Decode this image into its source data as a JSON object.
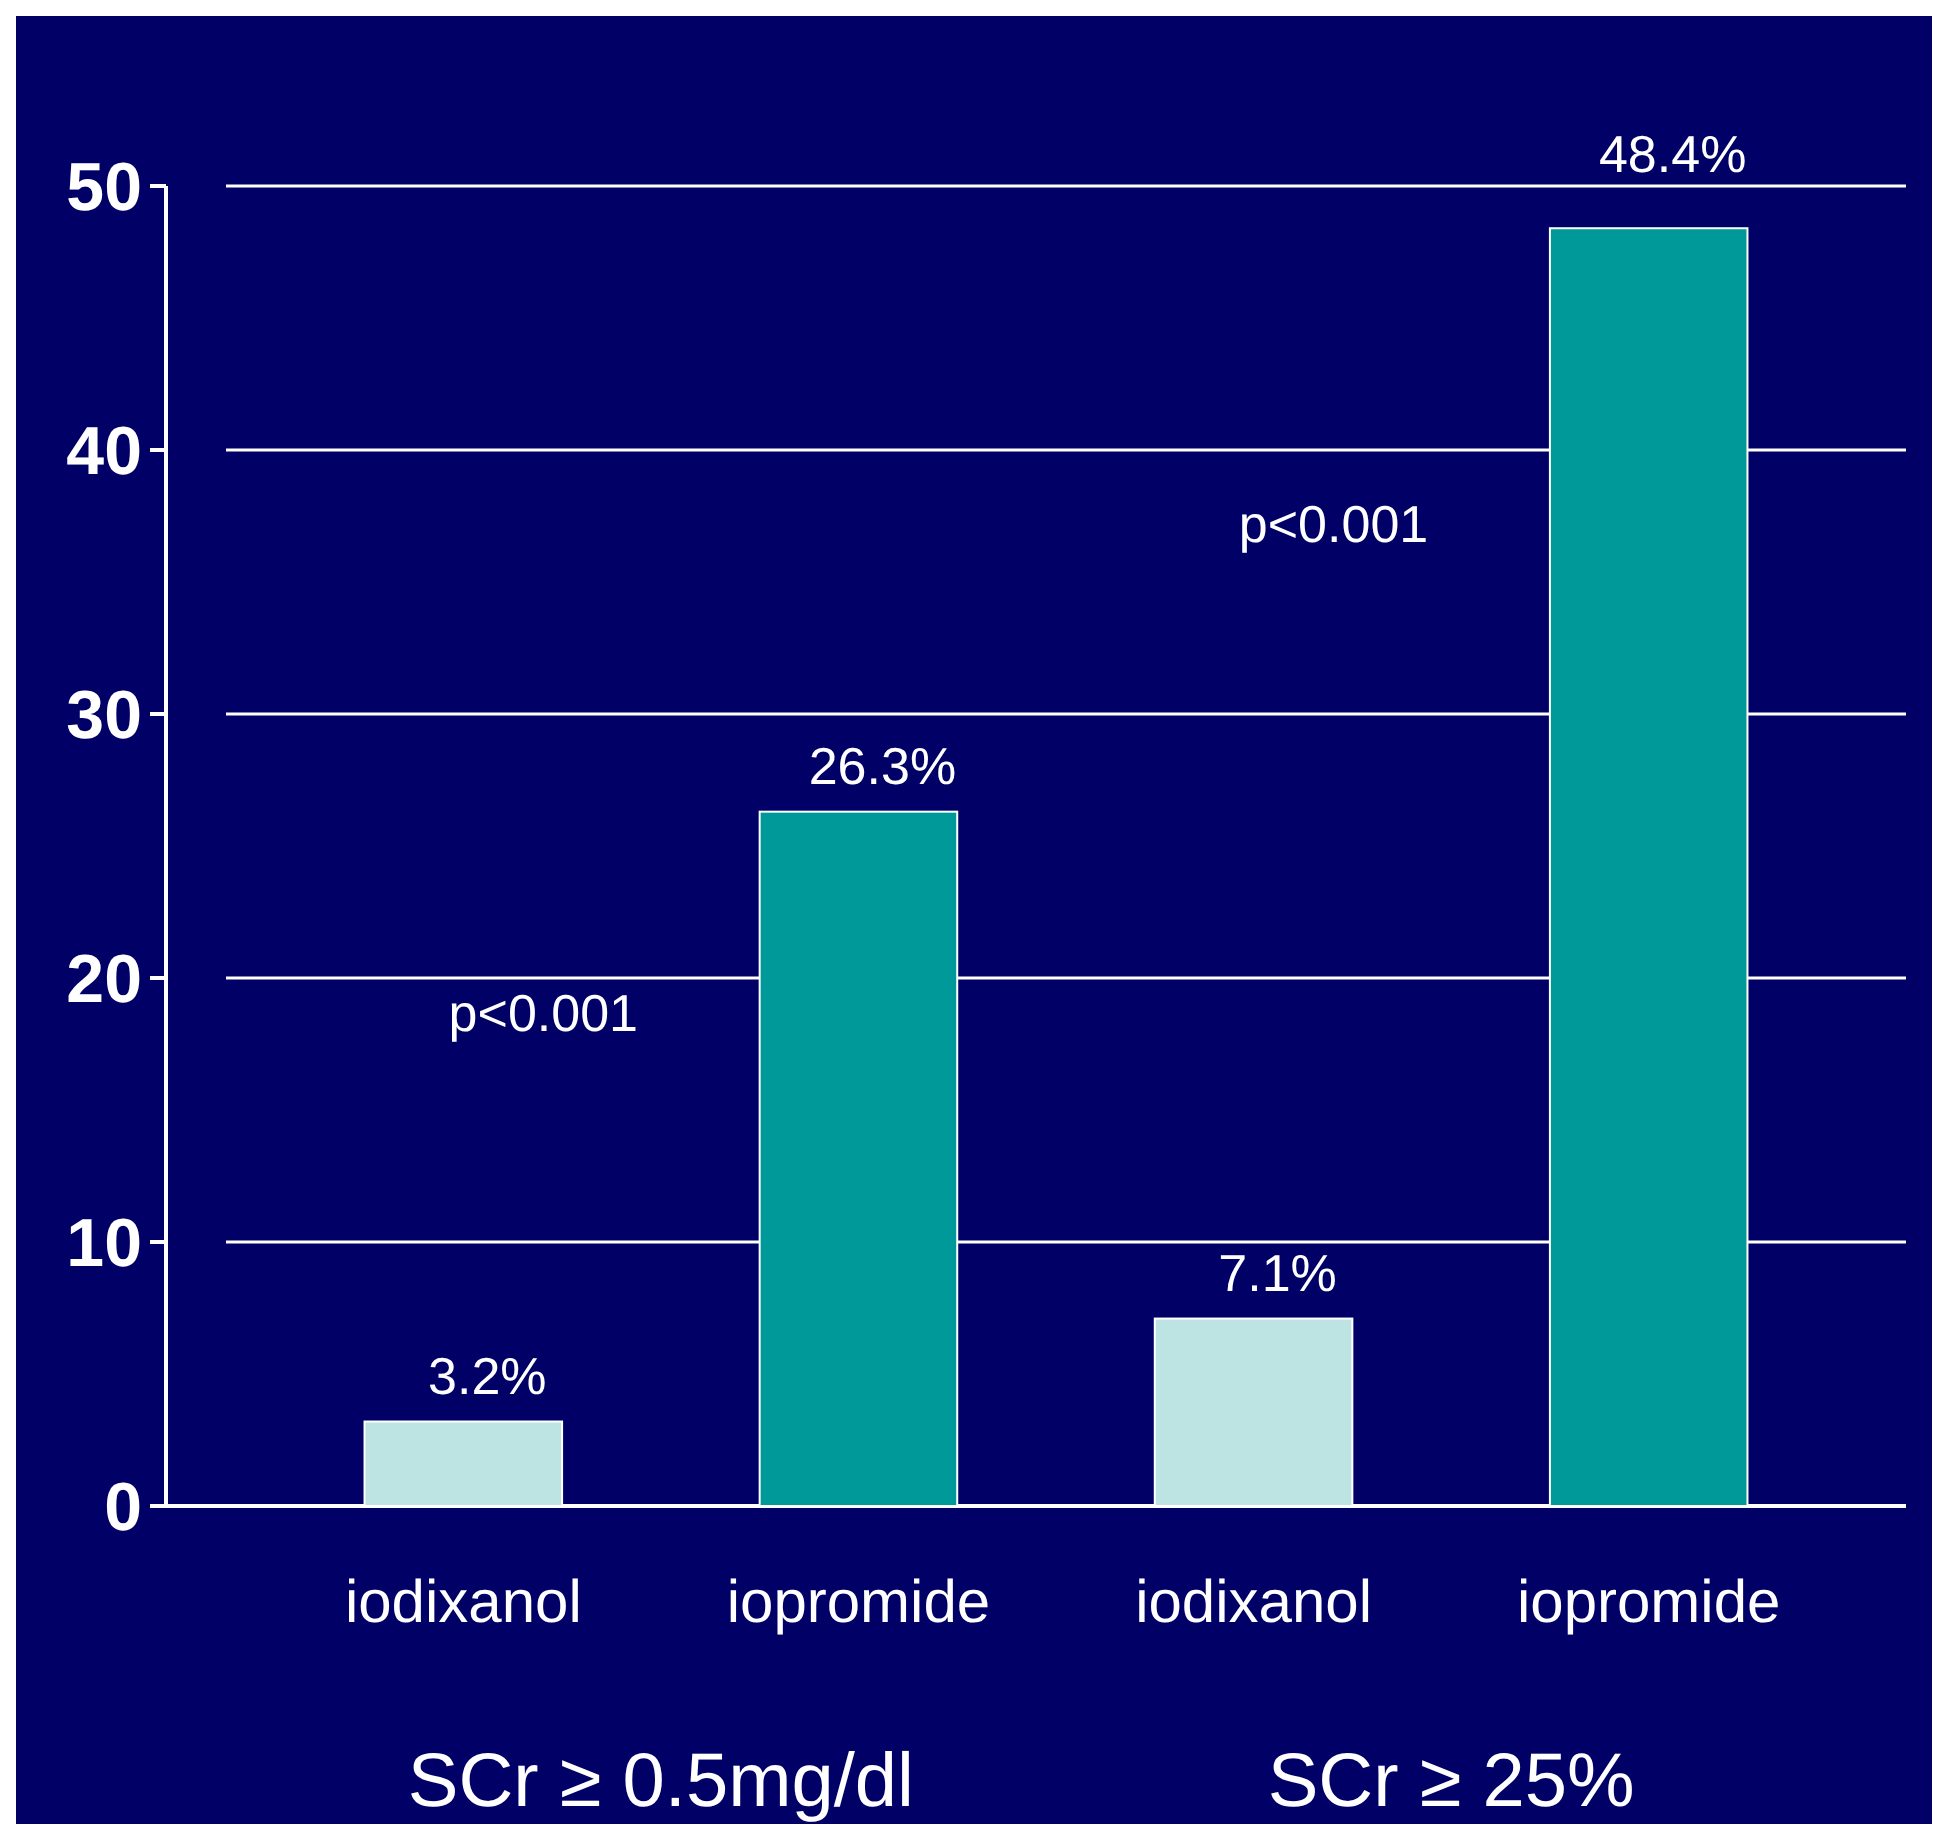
{
  "chart_data": {
    "type": "bar",
    "categories": [
      "iodixanol",
      "iopromide",
      "iodixanol",
      "iopromide"
    ],
    "values": [
      3.2,
      26.3,
      7.1,
      48.4
    ],
    "colors": [
      "#bde3e3",
      "#009999",
      "#bde3e3",
      "#009999"
    ],
    "value_labels": [
      "3.2%",
      "26.3%",
      "7.1%",
      "48.4%"
    ],
    "ylim": [
      0,
      50
    ],
    "yticks": [
      0,
      10,
      20,
      30,
      40,
      50
    ],
    "grid": "y",
    "annotations": [
      "SCr ≥ 0.5mg/dl",
      "SCr ≥ 25%",
      "p<0.001",
      "p<0.001"
    ]
  }
}
